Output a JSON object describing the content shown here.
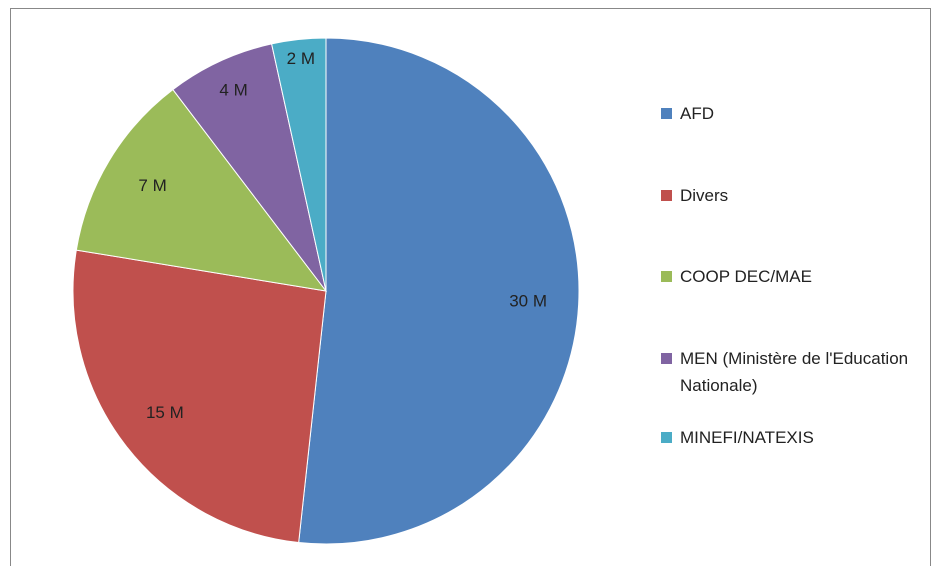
{
  "chart_data": {
    "type": "pie",
    "categories": [
      "AFD",
      "Divers",
      "COOP DEC/MAE",
      "MEN (Ministère de l'Education Nationale)",
      "MINEFI/NATEXIS"
    ],
    "values": [
      30,
      15,
      7,
      4,
      2
    ],
    "value_labels": [
      "30 M",
      "15 M",
      "7 M",
      "4 M",
      "2 M"
    ],
    "colors": [
      "#4f81bd",
      "#c0504d",
      "#9bbb59",
      "#8064a2",
      "#4bacc6"
    ],
    "legend": "right"
  }
}
